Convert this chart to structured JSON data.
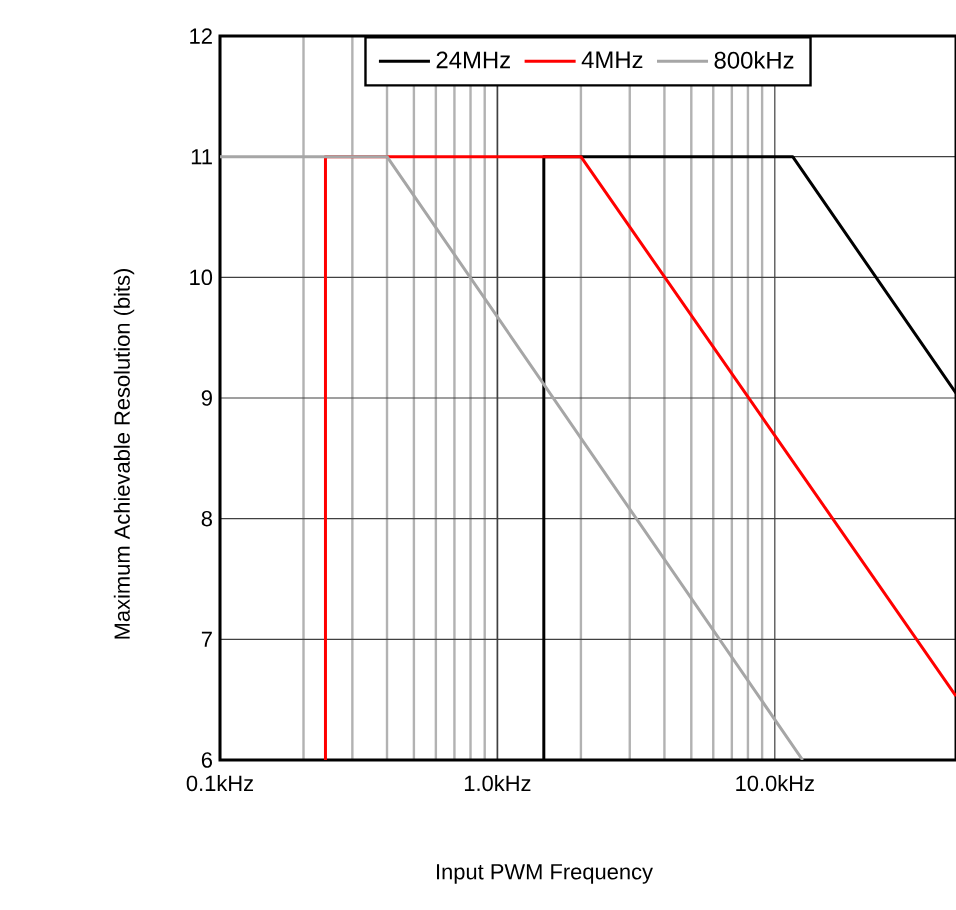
{
  "chart_data": {
    "type": "line",
    "xlabel": "Input PWM Frequency",
    "ylabel": "Maximum Achievable Resolution (bits)",
    "series": [
      {
        "name": "24MHz",
        "color": "#000000",
        "x": [
          1.47,
          1.47,
          11.6,
          45
        ],
        "values": [
          6,
          11,
          11,
          9.04
        ]
      },
      {
        "name": "4MHz",
        "color": "#ff0000",
        "x": [
          0.24,
          0.24,
          2.0,
          45
        ],
        "values": [
          6,
          11,
          11,
          6.53
        ]
      },
      {
        "name": "800kHz",
        "color": "#a6a6a6",
        "x": [
          0.1,
          0.4,
          12.6
        ],
        "values": [
          11,
          11,
          6
        ]
      }
    ],
    "log": "x",
    "xlim": [
      0.1,
      45
    ],
    "ylim": [
      6,
      12
    ],
    "xticks": [
      {
        "value": 0.1,
        "label": "0.1kHz"
      },
      {
        "value": 1,
        "label": "1.0kHz"
      },
      {
        "value": 10,
        "label": "10.0kHz"
      }
    ],
    "yticks": [
      6,
      7,
      8,
      9,
      10,
      11,
      12
    ],
    "grid": true,
    "legend": "top",
    "marker": "none",
    "line_style": "solid"
  }
}
